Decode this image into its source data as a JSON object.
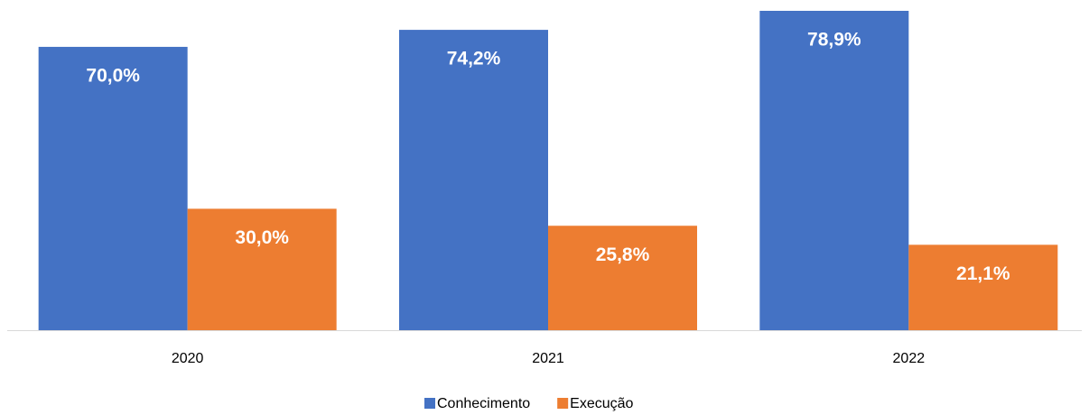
{
  "chart_data": {
    "type": "bar",
    "categories": [
      "2020",
      "2021",
      "2022"
    ],
    "series": [
      {
        "name": "Conhecimento",
        "color": "#4472c4",
        "values": [
          70.0,
          74.2,
          78.9
        ],
        "value_labels": [
          "70,0%",
          "74,2%",
          "78,9%"
        ]
      },
      {
        "name": "Execução",
        "color": "#ed7d31",
        "values": [
          30.0,
          25.8,
          21.1
        ],
        "value_labels": [
          "30,0%",
          "25,8%",
          "21,1%"
        ]
      }
    ]
  }
}
